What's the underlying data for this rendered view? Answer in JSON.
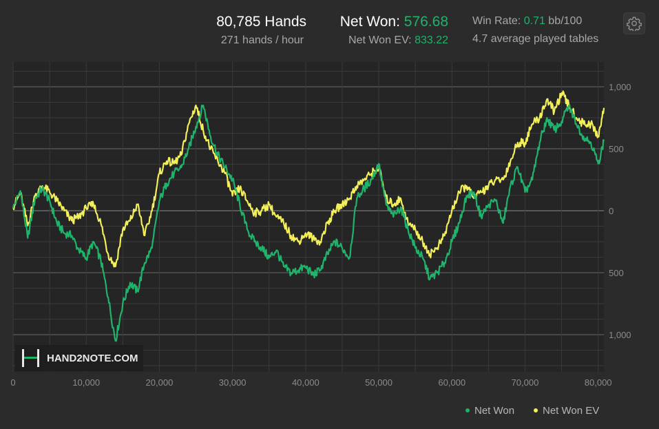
{
  "header": {
    "hands_value": "80,785",
    "hands_unit": "Hands",
    "hands_per_hour": "271 hands / hour",
    "net_won_label": "Net Won:",
    "net_won_value": "576.68",
    "net_won_ev_label": "Net Won  EV:",
    "net_won_ev_value": "833.22",
    "win_rate_label": "Win Rate:",
    "win_rate_value": "0.71",
    "win_rate_unit": "bb/100",
    "avg_tables": "4.7 average played tables",
    "settings_icon": "gear-icon"
  },
  "watermark": {
    "text": "HAND2NOTE.COM",
    "icon": "h2n-logo-icon"
  },
  "colors": {
    "background": "#2b2b2b",
    "plot_background": "#252525",
    "net_won": "#1fb36b",
    "net_won_ev": "#f3ef5a",
    "grid": "#3a3a3a",
    "zero_line": "#8a8a8a",
    "value_line": "#6a6a6a"
  },
  "chart_data": {
    "type": "line",
    "title": "",
    "xlabel": "",
    "ylabel": "",
    "xlim": [
      0,
      80785
    ],
    "ylim": [
      -1300,
      1200
    ],
    "x_ticks": [
      0,
      10000,
      20000,
      30000,
      40000,
      50000,
      60000,
      70000,
      80000
    ],
    "x_tick_labels": [
      "0",
      "10,000",
      "20,000",
      "30,000",
      "40,000",
      "50,000",
      "60,000",
      "70,000",
      "80,000"
    ],
    "y_ticks": [
      1000,
      500,
      0,
      -500,
      -1000
    ],
    "y_tick_labels": [
      "1,000",
      "500",
      "0",
      "500",
      "1,000"
    ],
    "grid": true,
    "legend_position": "bottom-right",
    "x": [
      0,
      1000,
      2000,
      3000,
      4000,
      5000,
      6000,
      7000,
      8000,
      9000,
      10000,
      11000,
      12000,
      13000,
      14000,
      15000,
      16000,
      17000,
      18000,
      19000,
      20000,
      21000,
      22000,
      23000,
      24000,
      25000,
      26000,
      27000,
      28000,
      29000,
      30000,
      31000,
      32000,
      33000,
      34000,
      35000,
      36000,
      37000,
      38000,
      39000,
      40000,
      41000,
      42000,
      43000,
      44000,
      45000,
      46000,
      47000,
      48000,
      49000,
      50000,
      51000,
      52000,
      53000,
      54000,
      55000,
      56000,
      57000,
      58000,
      59000,
      60000,
      61000,
      62000,
      63000,
      64000,
      65000,
      66000,
      67000,
      68000,
      69000,
      70000,
      71000,
      72000,
      73000,
      74000,
      75000,
      76000,
      77000,
      78000,
      79000,
      80000,
      80785
    ],
    "series": [
      {
        "name": "Net Won",
        "values": [
          20,
          160,
          -220,
          100,
          180,
          80,
          -100,
          -180,
          -200,
          -320,
          -380,
          -250,
          -400,
          -700,
          -1050,
          -750,
          -580,
          -650,
          -420,
          -300,
          80,
          220,
          300,
          350,
          500,
          680,
          850,
          600,
          450,
          350,
          250,
          50,
          -150,
          -250,
          -300,
          -380,
          -320,
          -450,
          -500,
          -480,
          -450,
          -520,
          -480,
          -350,
          -250,
          -300,
          -380,
          100,
          180,
          250,
          380,
          50,
          -50,
          30,
          -150,
          -300,
          -380,
          -550,
          -500,
          -420,
          -250,
          -100,
          120,
          150,
          -50,
          50,
          80,
          -100,
          200,
          350,
          150,
          250,
          550,
          750,
          650,
          720,
          850,
          700,
          600,
          550,
          380,
          560
        ]
      },
      {
        "name": "Net Won  EV",
        "values": [
          30,
          140,
          -120,
          120,
          200,
          150,
          80,
          0,
          -80,
          -50,
          20,
          50,
          -100,
          -350,
          -450,
          -150,
          -80,
          50,
          -200,
          0,
          300,
          400,
          380,
          450,
          700,
          850,
          650,
          500,
          400,
          300,
          120,
          180,
          80,
          -20,
          0,
          50,
          -50,
          -100,
          -200,
          -250,
          -180,
          -220,
          -250,
          -100,
          0,
          50,
          100,
          200,
          250,
          300,
          350,
          100,
          50,
          100,
          -100,
          -150,
          -250,
          -350,
          -300,
          -200,
          0,
          150,
          200,
          100,
          150,
          200,
          250,
          250,
          400,
          550,
          550,
          700,
          750,
          900,
          800,
          950,
          850,
          750,
          700,
          700,
          600,
          830
        ]
      }
    ]
  }
}
